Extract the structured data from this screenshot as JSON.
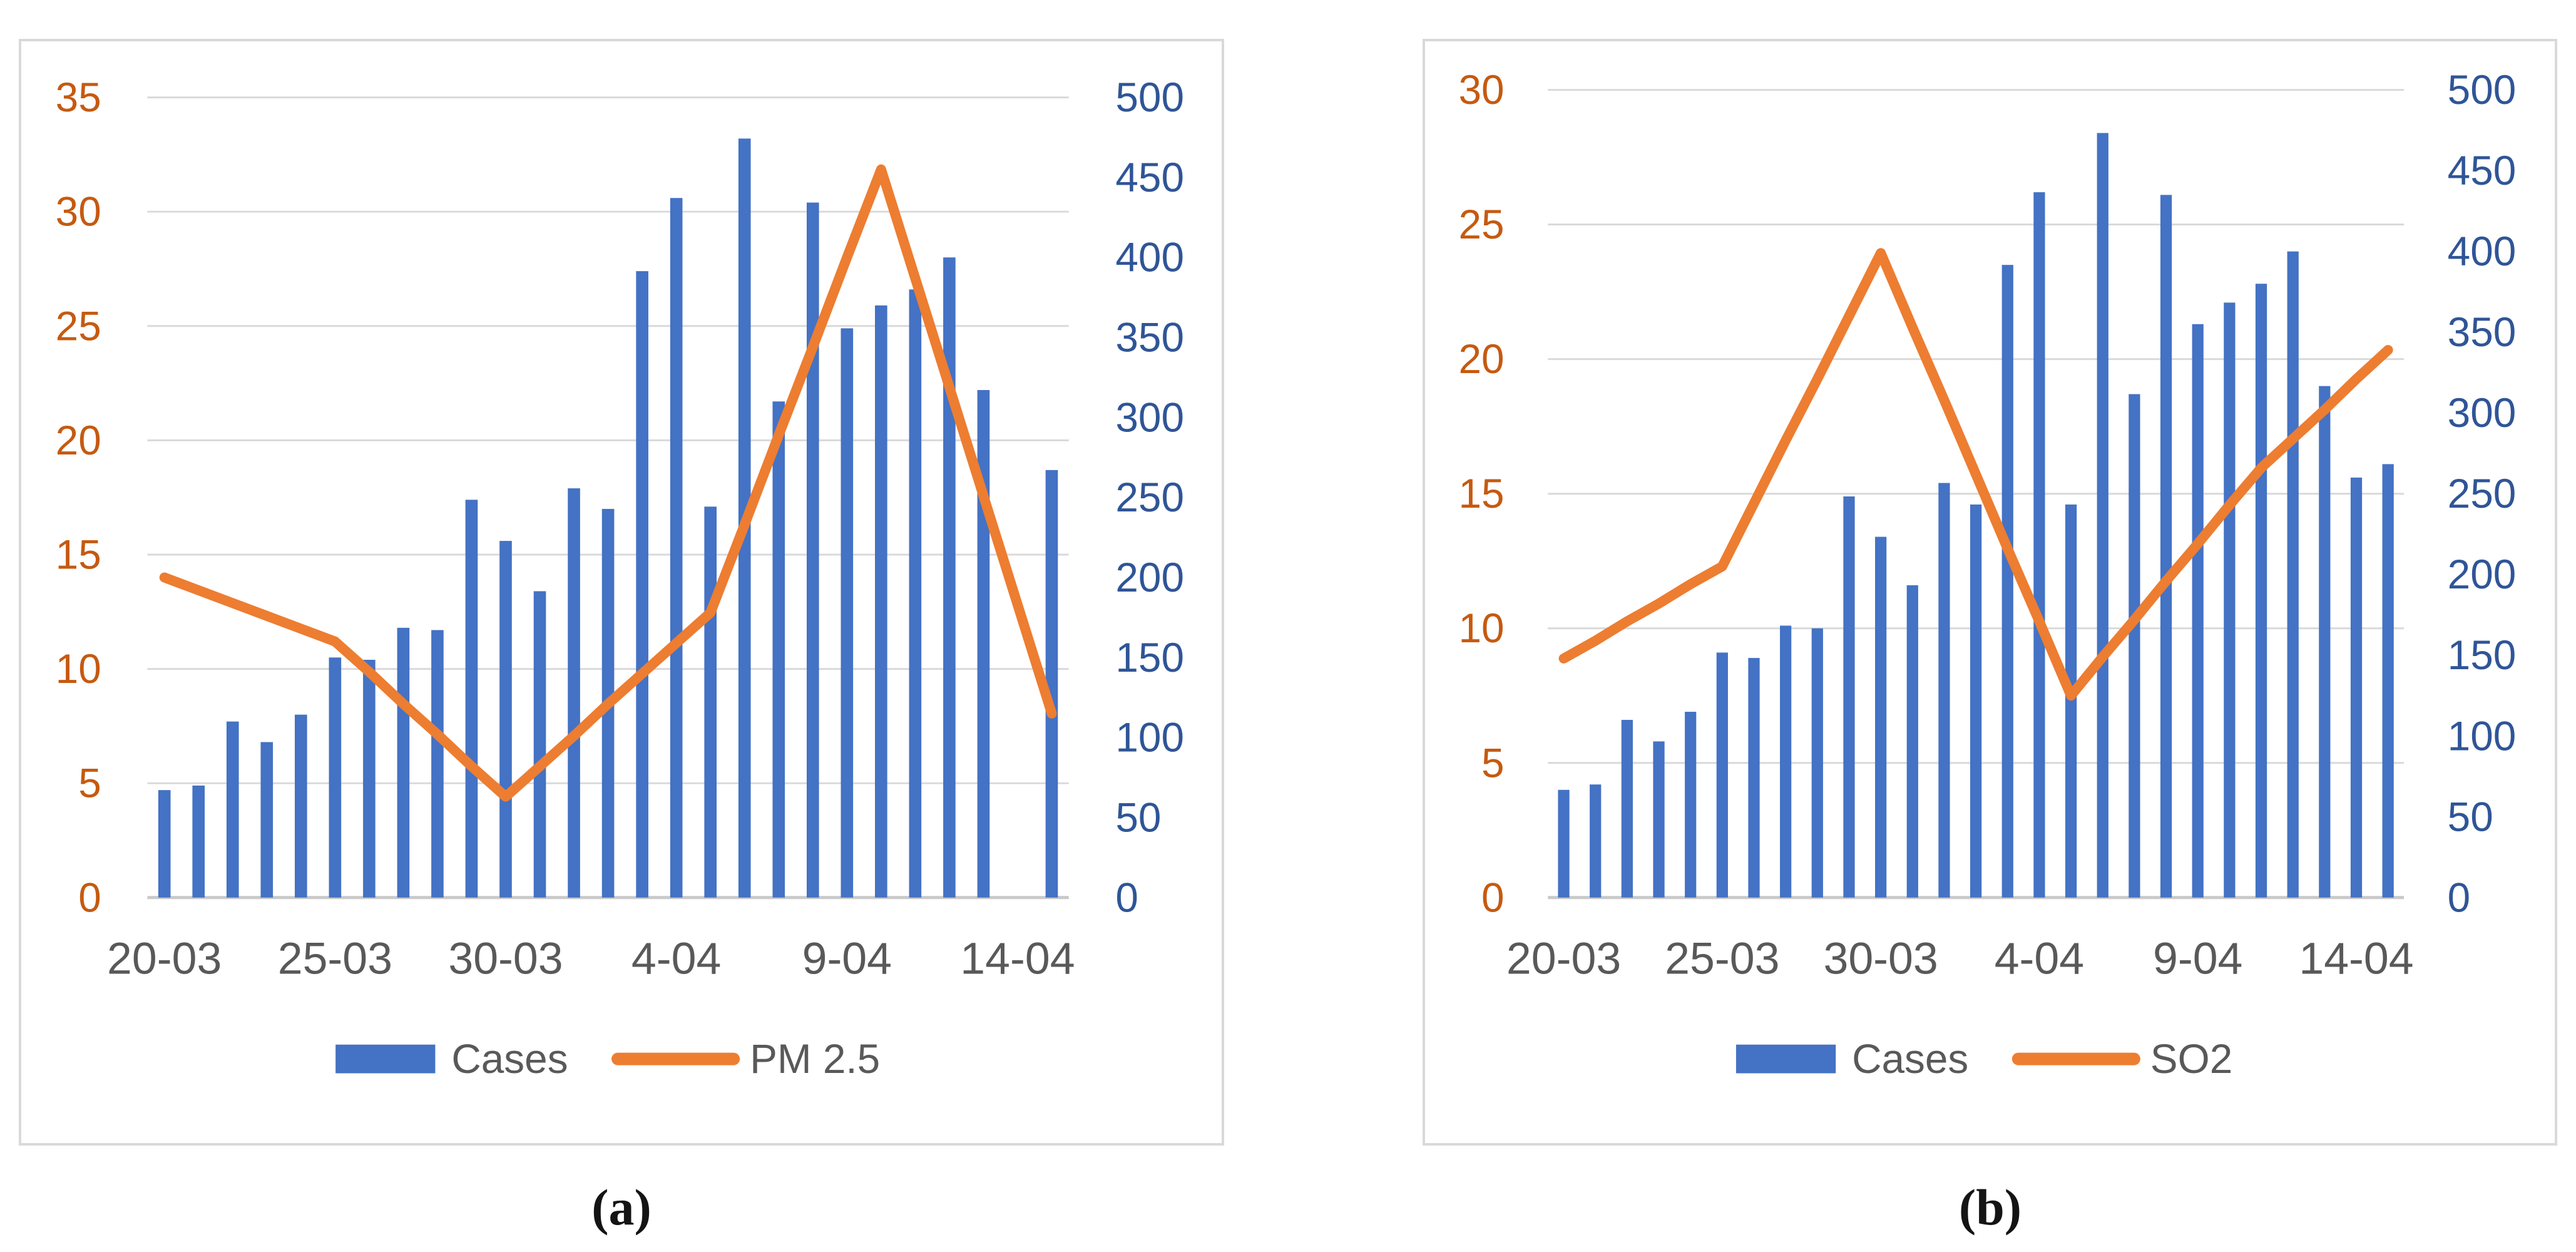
{
  "captions": {
    "a": "(a)",
    "b": "(b)"
  },
  "colors": {
    "bar_blue": "#4472C4",
    "line_orange": "#ED7D31",
    "left_axis_labels": "#C55A11",
    "right_axis_labels": "#2F5597",
    "x_axis_labels": "#595959",
    "gridline": "#D9D9D9",
    "baseline": "#C9C9C9",
    "panel_border": "#D9D9D9",
    "legend_text": "#595959"
  },
  "chart_data": [
    {
      "id": "a",
      "type": "bar",
      "subtype": "combo-bar-line-dual-axis",
      "title": "",
      "categories": [
        "20-03",
        "21-03",
        "22-03",
        "23-03",
        "24-03",
        "25-03",
        "26-03",
        "27-03",
        "28-03",
        "29-03",
        "30-03",
        "31-03",
        "1-04",
        "2-04",
        "3-04",
        "4-04",
        "5-04",
        "6-04",
        "7-04",
        "8-04",
        "9-04",
        "10-04",
        "11-04",
        "12-04",
        "13-04",
        "14-04",
        "15-04"
      ],
      "x_ticks": [
        {
          "index": 0,
          "label": "20-03"
        },
        {
          "index": 5,
          "label": "25-03"
        },
        {
          "index": 10,
          "label": "30-03"
        },
        {
          "index": 15,
          "label": "4-04"
        },
        {
          "index": 20,
          "label": "9-04"
        },
        {
          "index": 25,
          "label": "14-04"
        }
      ],
      "series": [
        {
          "name": "Cases",
          "type": "bar",
          "axis": "left",
          "color": "#4472C4",
          "values": [
            4.7,
            4.9,
            7.7,
            6.8,
            8.0,
            10.5,
            10.4,
            11.8,
            11.7,
            17.4,
            15.6,
            13.4,
            17.9,
            17.0,
            27.4,
            30.6,
            17.1,
            33.2,
            21.7,
            30.4,
            24.9,
            25.9,
            26.6,
            28.0,
            22.2,
            null,
            18.7
          ]
        },
        {
          "name": "PM 2.5",
          "type": "line",
          "axis": "right",
          "color": "#ED7D31",
          "values": [
            200,
            192,
            184,
            176,
            168,
            160,
            141,
            121,
            102,
            82,
            63,
            82,
            101,
            121,
            140,
            159,
            178,
            233,
            289,
            344,
            400,
            455,
            387,
            319,
            251,
            183,
            115
          ]
        }
      ],
      "left_axis": {
        "min": 0,
        "max": 35,
        "step": 5,
        "tick_labels": [
          "0",
          "5",
          "10",
          "15",
          "20",
          "25",
          "30",
          "35"
        ],
        "color": "#C55A11"
      },
      "right_axis": {
        "min": 0,
        "max": 500,
        "step": 50,
        "tick_labels": [
          "0",
          "50",
          "100",
          "150",
          "200",
          "250",
          "300",
          "350",
          "400",
          "450",
          "500"
        ],
        "color": "#2F5597"
      },
      "grid": true,
      "legend_position": "bottom",
      "legend": [
        {
          "label": "Cases",
          "swatch": "bar",
          "color": "#4472C4"
        },
        {
          "label": "PM 2.5",
          "swatch": "line",
          "color": "#ED7D31"
        }
      ]
    },
    {
      "id": "b",
      "type": "bar",
      "subtype": "combo-bar-line-dual-axis",
      "title": "",
      "categories": [
        "20-03",
        "21-03",
        "22-03",
        "23-03",
        "24-03",
        "25-03",
        "26-03",
        "27-03",
        "28-03",
        "29-03",
        "30-03",
        "31-03",
        "1-04",
        "2-04",
        "3-04",
        "4-04",
        "5-04",
        "6-04",
        "7-04",
        "8-04",
        "9-04",
        "10-04",
        "11-04",
        "12-04",
        "13-04",
        "14-04",
        "15-04"
      ],
      "x_ticks": [
        {
          "index": 0,
          "label": "20-03"
        },
        {
          "index": 5,
          "label": "25-03"
        },
        {
          "index": 10,
          "label": "30-03"
        },
        {
          "index": 15,
          "label": "4-04"
        },
        {
          "index": 20,
          "label": "9-04"
        },
        {
          "index": 25,
          "label": "14-04"
        }
      ],
      "series": [
        {
          "name": "Cases",
          "type": "bar",
          "axis": "left",
          "color": "#4472C4",
          "values": [
            4.0,
            4.2,
            6.6,
            5.8,
            6.9,
            9.1,
            8.9,
            10.1,
            10.0,
            14.9,
            13.4,
            11.6,
            15.4,
            14.6,
            23.5,
            26.2,
            14.6,
            28.4,
            18.7,
            26.1,
            21.3,
            22.1,
            22.8,
            24.0,
            19.0,
            15.6,
            16.1
          ]
        },
        {
          "name": "SO2",
          "type": "line",
          "axis": "right",
          "color": "#ED7D31",
          "values": [
            148,
            159,
            171,
            182,
            194,
            205,
            244,
            283,
            321,
            360,
            399,
            353,
            308,
            262,
            216,
            171,
            125,
            149,
            172,
            196,
            219,
            243,
            266,
            284,
            302,
            321,
            339
          ]
        }
      ],
      "left_axis": {
        "min": 0,
        "max": 30,
        "step": 5,
        "tick_labels": [
          "0",
          "5",
          "10",
          "15",
          "20",
          "25",
          "30"
        ],
        "color": "#C55A11"
      },
      "right_axis": {
        "min": 0,
        "max": 500,
        "step": 50,
        "tick_labels": [
          "0",
          "50",
          "100",
          "150",
          "200",
          "250",
          "300",
          "350",
          "400",
          "450",
          "500"
        ],
        "color": "#2F5597"
      },
      "grid": true,
      "legend_position": "bottom",
      "legend": [
        {
          "label": "Cases",
          "swatch": "bar",
          "color": "#4472C4"
        },
        {
          "label": "SO2",
          "swatch": "line",
          "color": "#ED7D31"
        }
      ]
    }
  ]
}
